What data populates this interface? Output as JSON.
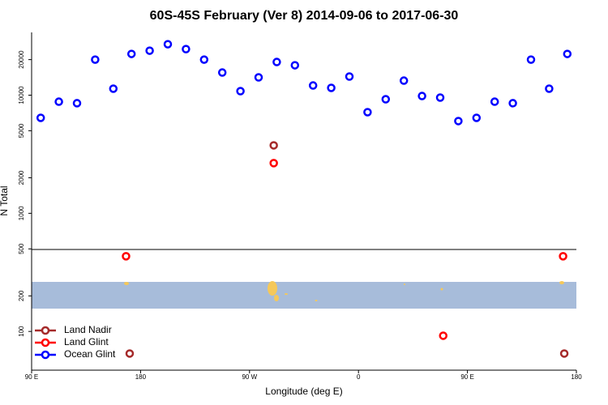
{
  "chart_data": {
    "type": "scatter",
    "title": "60S-45S February (Ver 8)   2014-09-06 to 2017-06-30",
    "x_label": "Longitude (deg E)",
    "y_label": "N Total",
    "xlim": [
      90,
      540
    ],
    "xticks": [
      {
        "value": 90,
        "label": "90 E"
      },
      {
        "value": 180,
        "label": "180"
      },
      {
        "value": 270,
        "label": "90 W"
      },
      {
        "value": 360,
        "label": "0"
      },
      {
        "value": 450,
        "label": "90 E"
      },
      {
        "value": 540,
        "label": "180"
      }
    ],
    "ylim": [
      47,
      34000
    ],
    "ylog": true,
    "yticks": [
      100,
      200,
      500,
      1000,
      2000,
      5000,
      10000,
      20000
    ],
    "legend": "bottom-left",
    "series": [
      {
        "name": "Land Nadir",
        "color": "#a52a2a",
        "x": [
          171,
          290,
          530
        ],
        "values": [
          65,
          3760,
          65
        ]
      },
      {
        "name": "Land Glint",
        "color": "#ff0000",
        "x": [
          168,
          290,
          430,
          529
        ],
        "values": [
          433,
          2660,
          92,
          433
        ]
      },
      {
        "name": "Ocean Glint",
        "color": "#0000ff",
        "x": [
          97.5,
          112.5,
          127.5,
          142.5,
          157.5,
          172.5,
          187.5,
          202.5,
          217.5,
          232.5,
          247.5,
          262.5,
          277.5,
          292.5,
          307.5,
          322.5,
          337.5,
          352.5,
          367.5,
          382.5,
          397.5,
          412.5,
          427.5,
          442.5,
          457.5,
          472.5,
          487.5,
          502.5,
          517.5,
          532.5
        ],
        "values": [
          6430,
          8810,
          8550,
          20000,
          11350,
          22340,
          23800,
          27000,
          24550,
          20000,
          15550,
          10820,
          14150,
          19090,
          17920,
          12080,
          11530,
          14380,
          7180,
          9240,
          13280,
          9840,
          9540,
          6040,
          6430,
          8810,
          8550,
          20000,
          11350,
          22340
        ]
      }
    ]
  }
}
